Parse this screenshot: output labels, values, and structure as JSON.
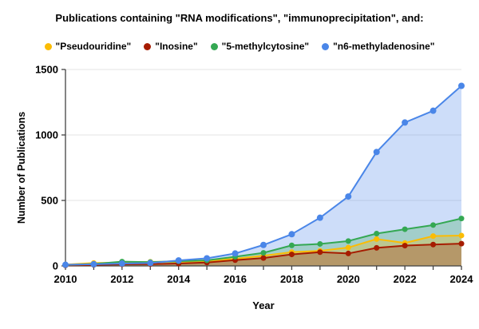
{
  "title": "Publications containing \"RNA modifications\", \"immunoprecipitation\", and:",
  "legend": {
    "items": [
      {
        "label": "\"Pseudouridine\"",
        "color": "#fbbc04"
      },
      {
        "label": "\"Inosine\"",
        "color": "#a61c00"
      },
      {
        "label": "\"5-methylcytosine\"",
        "color": "#34a853"
      },
      {
        "label": "\"n6-methyladenosine\"",
        "color": "#4a86e8"
      }
    ]
  },
  "chart_data": {
    "type": "area",
    "title": "Publications containing \"RNA modifications\", \"immunoprecipitation\", and:",
    "xlabel": "Year",
    "ylabel": "Number of Publications",
    "x": [
      2010,
      2011,
      2012,
      2013,
      2014,
      2015,
      2016,
      2017,
      2018,
      2019,
      2020,
      2021,
      2022,
      2023,
      2024
    ],
    "series": [
      {
        "name": "\"Pseudouridine\"",
        "key": "pseudouridine",
        "color": "#fbbc04",
        "values": [
          10,
          22,
          26,
          31,
          32,
          37,
          55,
          78,
          105,
          115,
          140,
          205,
          175,
          228,
          232
        ]
      },
      {
        "name": "\"Inosine\"",
        "key": "inosine",
        "color": "#a61c00",
        "values": [
          4,
          8,
          12,
          14,
          18,
          26,
          44,
          60,
          88,
          105,
          95,
          138,
          155,
          163,
          170
        ]
      },
      {
        "name": "\"5-methylcytosine\"",
        "key": "5-methylcytosine",
        "color": "#34a853",
        "values": [
          7,
          15,
          33,
          29,
          36,
          43,
          70,
          100,
          157,
          168,
          190,
          247,
          280,
          312,
          362
        ]
      },
      {
        "name": "\"n6-methyladenosine\"",
        "key": "n6-methyladenosine",
        "color": "#4a86e8",
        "values": [
          9,
          13,
          18,
          22,
          42,
          58,
          95,
          160,
          242,
          368,
          530,
          870,
          1095,
          1185,
          1375
        ]
      }
    ],
    "ylim": [
      0,
      1500
    ],
    "yticks": [
      0,
      500,
      1000,
      1500
    ],
    "xtick_labels": [
      2010,
      2012,
      2014,
      2016,
      2018,
      2020,
      2022,
      2024
    ],
    "grid": true,
    "legend_position": "top",
    "fill_opacity": 0.28,
    "fill_draw_order": [
      3,
      2,
      0,
      1
    ],
    "axis_color": "#424242",
    "grid_color": "#e3e3e3"
  }
}
